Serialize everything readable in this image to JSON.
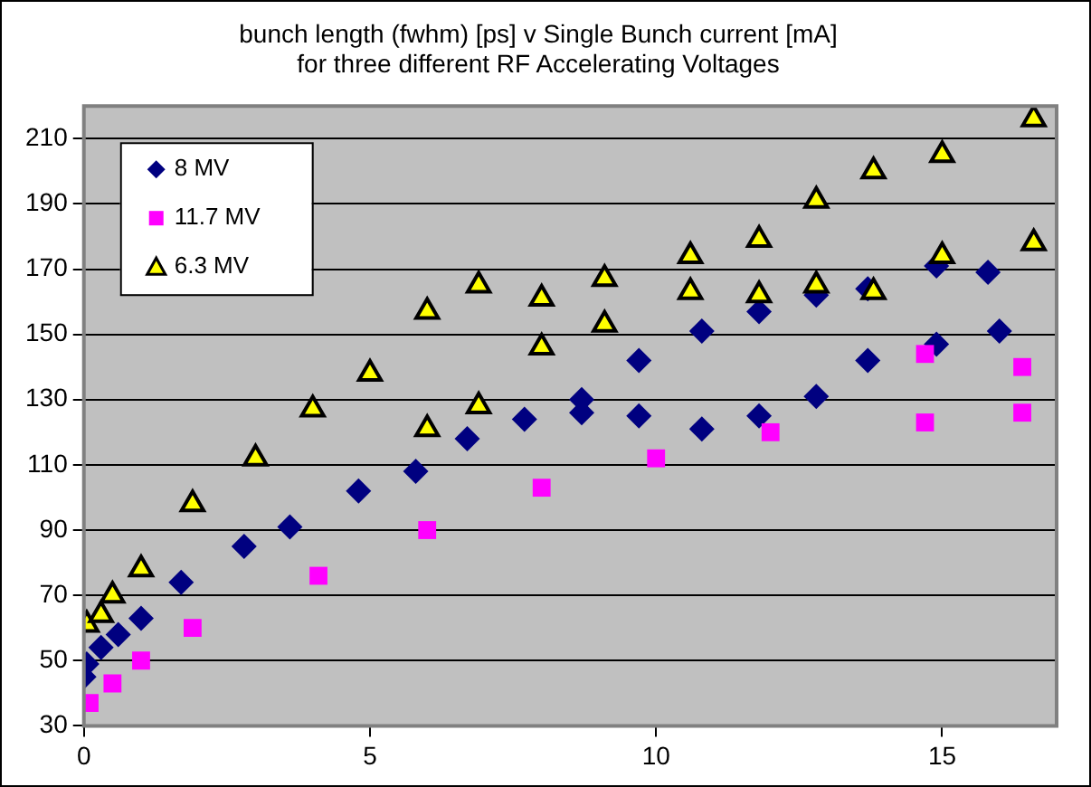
{
  "chart_data": {
    "type": "scatter",
    "title": "bunch length (fwhm) [ps] v Single Bunch current [mA]\nfor three different RF Accelerating Voltages",
    "xlim": [
      0,
      17
    ],
    "xticks": [
      0,
      5,
      10,
      15
    ],
    "ylim": [
      30,
      220
    ],
    "yticks": [
      30,
      50,
      70,
      90,
      110,
      130,
      150,
      170,
      190,
      210
    ],
    "grid": "y",
    "legend": "top left",
    "series": [
      {
        "name": "8 MV",
        "color": "#000080",
        "marker": "diamond",
        "x": [
          0,
          0.05,
          0.3,
          0.6,
          1.0,
          1.7,
          2.8,
          3.6,
          4.8,
          5.8,
          6.7,
          7.7,
          8.7,
          8.7,
          9.7,
          9.7,
          10.8,
          10.8,
          11.8,
          11.8,
          12.8,
          12.8,
          13.7,
          13.7,
          14.9,
          14.9,
          15.8,
          16.0
        ],
        "values": [
          45,
          49,
          54,
          58,
          63,
          74,
          85,
          91,
          102,
          108,
          118,
          124,
          130,
          126,
          142,
          125,
          151,
          121,
          157,
          125,
          162,
          131,
          164,
          142,
          171,
          147,
          169,
          151
        ]
      },
      {
        "name": "11.7 MV",
        "color": "#ff00ff",
        "marker": "square",
        "x": [
          0.1,
          0.5,
          1.0,
          1.9,
          4.1,
          6.0,
          8.0,
          10.0,
          12.0,
          14.7,
          14.7,
          16.4,
          16.4
        ],
        "values": [
          37,
          43,
          50,
          60,
          76,
          90,
          103,
          112,
          120,
          123,
          144,
          140,
          126
        ]
      },
      {
        "name": "6.3 MV",
        "color": "#ffff00",
        "marker": "triangle",
        "x": [
          0.05,
          0.3,
          0.5,
          1.0,
          1.9,
          3.0,
          4.0,
          5.0,
          6.0,
          6.0,
          6.9,
          6.9,
          8.0,
          8.0,
          9.1,
          9.1,
          10.6,
          10.6,
          11.8,
          11.8,
          12.8,
          12.8,
          13.8,
          13.8,
          15.0,
          15.0,
          16.6,
          16.6
        ],
        "values": [
          61,
          64,
          70,
          78,
          98,
          112,
          127,
          138,
          157,
          121,
          165,
          128,
          161,
          146,
          167,
          153,
          174,
          163,
          179,
          162,
          191,
          165,
          200,
          163,
          205,
          174,
          216,
          178
        ]
      }
    ]
  }
}
